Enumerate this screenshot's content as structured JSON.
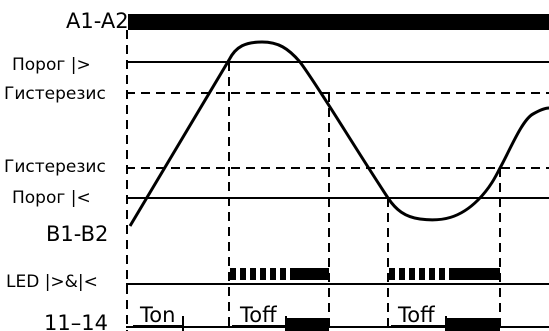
{
  "labels": {
    "a1_a2": "A1-A2",
    "threshold_high": "Порог  |>",
    "hysteresis_high": "Гистерезис",
    "hysteresis_low": "Гистерезис",
    "threshold_low": "Порог  |<",
    "b1_b2": "B1-B2",
    "led": "LED |>&|<",
    "relay": "11–14",
    "ton": "Ton",
    "toff_1": "Toff",
    "toff_2": "Toff"
  }
}
